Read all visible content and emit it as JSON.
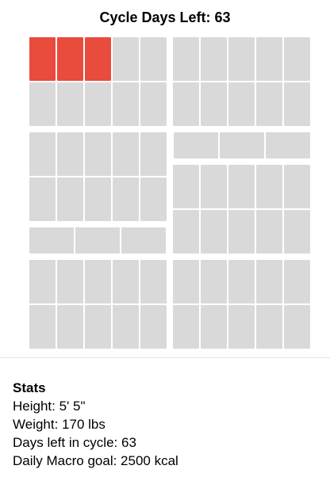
{
  "header": {
    "title": "Cycle Days Left: 63"
  },
  "calendar": {
    "filled_days": 3,
    "colors": {
      "filled": "#e94b3c",
      "empty": "#d9d9d9"
    }
  },
  "stats": {
    "heading": "Stats",
    "height": "Height: 5' 5\"",
    "weight": "Weight: 170 lbs",
    "days_left": "Days left in cycle: 63",
    "macro_goal": "Daily Macro goal: 2500 kcal"
  }
}
